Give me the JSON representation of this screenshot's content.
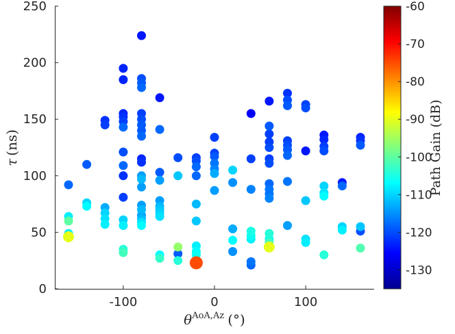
{
  "chart_data": {
    "type": "scatter",
    "xlabel": "θ^{AoA,Az} (°)",
    "ylabel": "τ (ns)",
    "xlim": [
      -175,
      175
    ],
    "ylim": [
      0,
      250
    ],
    "xticks": [
      -100,
      0,
      100
    ],
    "yticks": [
      0,
      50,
      100,
      150,
      200,
      250
    ],
    "grid": false,
    "colorbar": {
      "label": "Path Gain (dB)",
      "range": [
        -135,
        -60
      ],
      "ticks": [
        -60,
        -70,
        -80,
        -90,
        -100,
        -110,
        -120,
        -130
      ],
      "colormap": "jet"
    },
    "points": [
      {
        "x": -160,
        "y": 92,
        "g": -118
      },
      {
        "x": -160,
        "y": 64,
        "g": -108
      },
      {
        "x": -160,
        "y": 60,
        "g": -100
      },
      {
        "x": -160,
        "y": 49,
        "g": -108
      },
      {
        "x": -160,
        "y": 46,
        "g": -90
      },
      {
        "x": -140,
        "y": 110,
        "g": -119
      },
      {
        "x": -140,
        "y": 76,
        "g": -110
      },
      {
        "x": -140,
        "y": 73,
        "g": -107
      },
      {
        "x": -120,
        "y": 149,
        "g": -122
      },
      {
        "x": -120,
        "y": 145,
        "g": -121
      },
      {
        "x": -120,
        "y": 72,
        "g": -113
      },
      {
        "x": -120,
        "y": 67,
        "g": -110
      },
      {
        "x": -120,
        "y": 62,
        "g": -109
      },
      {
        "x": -120,
        "y": 57,
        "g": -108
      },
      {
        "x": -100,
        "y": 195,
        "g": -123
      },
      {
        "x": -100,
        "y": 185,
        "g": -123
      },
      {
        "x": -100,
        "y": 155,
        "g": -123
      },
      {
        "x": -100,
        "y": 152,
        "g": -122
      },
      {
        "x": -100,
        "y": 148,
        "g": -121
      },
      {
        "x": -100,
        "y": 143,
        "g": -118
      },
      {
        "x": -100,
        "y": 121,
        "g": -120
      },
      {
        "x": -100,
        "y": 109,
        "g": -118
      },
      {
        "x": -100,
        "y": 100,
        "g": -122
      },
      {
        "x": -100,
        "y": 81,
        "g": -121
      },
      {
        "x": -100,
        "y": 61,
        "g": -110
      },
      {
        "x": -100,
        "y": 56,
        "g": -108
      },
      {
        "x": -100,
        "y": 35,
        "g": -104
      },
      {
        "x": -100,
        "y": 32,
        "g": -102
      },
      {
        "x": -80,
        "y": 224,
        "g": -124
      },
      {
        "x": -80,
        "y": 186,
        "g": -120
      },
      {
        "x": -80,
        "y": 182,
        "g": -119
      },
      {
        "x": -80,
        "y": 178,
        "g": -118
      },
      {
        "x": -80,
        "y": 155,
        "g": -121
      },
      {
        "x": -80,
        "y": 150,
        "g": -120
      },
      {
        "x": -80,
        "y": 145,
        "g": -119
      },
      {
        "x": -80,
        "y": 140,
        "g": -119
      },
      {
        "x": -80,
        "y": 135,
        "g": -118
      },
      {
        "x": -80,
        "y": 115,
        "g": -123
      },
      {
        "x": -80,
        "y": 112,
        "g": -122
      },
      {
        "x": -80,
        "y": 100,
        "g": -114
      },
      {
        "x": -80,
        "y": 97,
        "g": -112
      },
      {
        "x": -80,
        "y": 90,
        "g": -114
      },
      {
        "x": -80,
        "y": 74,
        "g": -114
      },
      {
        "x": -80,
        "y": 70,
        "g": -112
      },
      {
        "x": -80,
        "y": 65,
        "g": -114
      },
      {
        "x": -80,
        "y": 62,
        "g": -112
      },
      {
        "x": -80,
        "y": 59,
        "g": -109
      },
      {
        "x": -80,
        "y": 56,
        "g": -107
      },
      {
        "x": -60,
        "y": 169,
        "g": -124
      },
      {
        "x": -60,
        "y": 141,
        "g": -118
      },
      {
        "x": -60,
        "y": 103,
        "g": -119
      },
      {
        "x": -60,
        "y": 96,
        "g": -114
      },
      {
        "x": -60,
        "y": 78,
        "g": -114
      },
      {
        "x": -60,
        "y": 73,
        "g": -112
      },
      {
        "x": -60,
        "y": 70,
        "g": -111
      },
      {
        "x": -60,
        "y": 67,
        "g": -110
      },
      {
        "x": -60,
        "y": 64,
        "g": -109
      },
      {
        "x": -60,
        "y": 30,
        "g": -107
      },
      {
        "x": -60,
        "y": 27,
        "g": -103
      },
      {
        "x": -40,
        "y": 116,
        "g": -120
      },
      {
        "x": -40,
        "y": 100,
        "g": -111
      },
      {
        "x": -40,
        "y": 37,
        "g": -96
      },
      {
        "x": -40,
        "y": 31,
        "g": -119
      },
      {
        "x": -40,
        "y": 25,
        "g": -104
      },
      {
        "x": -20,
        "y": 116,
        "g": -121
      },
      {
        "x": -20,
        "y": 113,
        "g": -120
      },
      {
        "x": -20,
        "y": 108,
        "g": -118
      },
      {
        "x": -20,
        "y": 100,
        "g": -118
      },
      {
        "x": -20,
        "y": 75,
        "g": -112
      },
      {
        "x": -20,
        "y": 60,
        "g": -111
      },
      {
        "x": -20,
        "y": 38,
        "g": -108
      },
      {
        "x": -20,
        "y": 33,
        "g": -107
      },
      {
        "x": -20,
        "y": 30,
        "g": -106
      },
      {
        "x": -20,
        "y": 23,
        "g": -75
      },
      {
        "x": 0,
        "y": 134,
        "g": -121
      },
      {
        "x": 0,
        "y": 120,
        "g": -121
      },
      {
        "x": 0,
        "y": 117,
        "g": -119
      },
      {
        "x": 0,
        "y": 111,
        "g": -117
      },
      {
        "x": 0,
        "y": 106,
        "g": -116
      },
      {
        "x": 0,
        "y": 102,
        "g": -113
      },
      {
        "x": 0,
        "y": 87,
        "g": -114
      },
      {
        "x": 20,
        "y": 105,
        "g": -110
      },
      {
        "x": 20,
        "y": 94,
        "g": -115
      },
      {
        "x": 20,
        "y": 53,
        "g": -113
      },
      {
        "x": 20,
        "y": 43,
        "g": -107
      },
      {
        "x": 20,
        "y": 33,
        "g": -115
      },
      {
        "x": 40,
        "y": 155,
        "g": -126
      },
      {
        "x": 40,
        "y": 115,
        "g": -121
      },
      {
        "x": 40,
        "y": 88,
        "g": -116
      },
      {
        "x": 40,
        "y": 51,
        "g": -105
      },
      {
        "x": 40,
        "y": 47,
        "g": -106
      },
      {
        "x": 40,
        "y": 44,
        "g": -108
      },
      {
        "x": 40,
        "y": 24,
        "g": -117
      },
      {
        "x": 40,
        "y": 21,
        "g": -118
      },
      {
        "x": 60,
        "y": 166,
        "g": -124
      },
      {
        "x": 60,
        "y": 144,
        "g": -119
      },
      {
        "x": 60,
        "y": 137,
        "g": -121
      },
      {
        "x": 60,
        "y": 130,
        "g": -121
      },
      {
        "x": 60,
        "y": 125,
        "g": -120
      },
      {
        "x": 60,
        "y": 115,
        "g": -121
      },
      {
        "x": 60,
        "y": 111,
        "g": -120
      },
      {
        "x": 60,
        "y": 93,
        "g": -118
      },
      {
        "x": 60,
        "y": 88,
        "g": -117
      },
      {
        "x": 60,
        "y": 84,
        "g": -117
      },
      {
        "x": 60,
        "y": 80,
        "g": -116
      },
      {
        "x": 60,
        "y": 49,
        "g": -104
      },
      {
        "x": 60,
        "y": 44,
        "g": -106
      },
      {
        "x": 60,
        "y": 41,
        "g": -102
      },
      {
        "x": 60,
        "y": 37,
        "g": -90
      },
      {
        "x": 80,
        "y": 173,
        "g": -122
      },
      {
        "x": 80,
        "y": 167,
        "g": -120
      },
      {
        "x": 80,
        "y": 162,
        "g": -119
      },
      {
        "x": 80,
        "y": 131,
        "g": -121
      },
      {
        "x": 80,
        "y": 127,
        "g": -120
      },
      {
        "x": 80,
        "y": 123,
        "g": -119
      },
      {
        "x": 80,
        "y": 118,
        "g": -118
      },
      {
        "x": 80,
        "y": 95,
        "g": -117
      },
      {
        "x": 80,
        "y": 56,
        "g": -114
      },
      {
        "x": 100,
        "y": 163,
        "g": -121
      },
      {
        "x": 100,
        "y": 160,
        "g": -120
      },
      {
        "x": 100,
        "y": 122,
        "g": -124
      },
      {
        "x": 100,
        "y": 78,
        "g": -111
      },
      {
        "x": 100,
        "y": 44,
        "g": -109
      },
      {
        "x": 100,
        "y": 41,
        "g": -108
      },
      {
        "x": 120,
        "y": 136,
        "g": -124
      },
      {
        "x": 120,
        "y": 132,
        "g": -123
      },
      {
        "x": 120,
        "y": 126,
        "g": -121
      },
      {
        "x": 120,
        "y": 122,
        "g": -120
      },
      {
        "x": 120,
        "y": 91,
        "g": -110
      },
      {
        "x": 120,
        "y": 85,
        "g": -109
      },
      {
        "x": 120,
        "y": 82,
        "g": -107
      },
      {
        "x": 120,
        "y": 30,
        "g": -104
      },
      {
        "x": 140,
        "y": 94,
        "g": -124
      },
      {
        "x": 140,
        "y": 91,
        "g": -118
      },
      {
        "x": 140,
        "y": 55,
        "g": -110
      },
      {
        "x": 140,
        "y": 52,
        "g": -108
      },
      {
        "x": 160,
        "y": 134,
        "g": -123
      },
      {
        "x": 160,
        "y": 131,
        "g": -122
      },
      {
        "x": 160,
        "y": 127,
        "g": -119
      },
      {
        "x": 160,
        "y": 55,
        "g": -111
      },
      {
        "x": 160,
        "y": 51,
        "g": -120
      },
      {
        "x": 160,
        "y": 36,
        "g": -101
      }
    ]
  }
}
